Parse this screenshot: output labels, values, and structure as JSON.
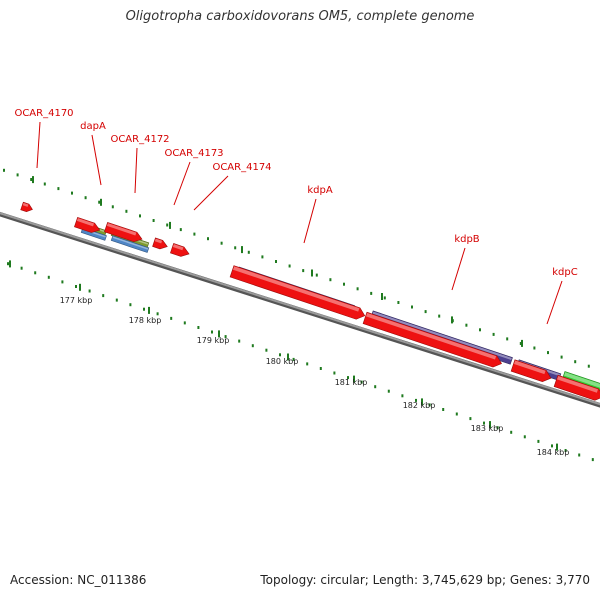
{
  "title": "Oligotropha carboxidovorans OM5, complete genome",
  "footer": {
    "accession": "Accession: NC_011386",
    "summary": "Topology: circular; Length: 3,745,629 bp; Genes: 3,770"
  },
  "colors": {
    "cds": "#ee1111",
    "gene_green": "#7d9a2e",
    "gene_blue": "#4f86c6",
    "gene_purple": "#4b3f8f",
    "gene_bright_green": "#33cc33",
    "label": "#d40000",
    "ticks": "#1f7a1f",
    "backbone": "#808080"
  },
  "gene_labels": [
    "OCAR_4170",
    "dapA",
    "OCAR_4172",
    "OCAR_4173",
    "OCAR_4174",
    "kdpA",
    "kdpB",
    "kdpC"
  ],
  "kbp_labels": [
    "177 kbp",
    "178 kbp",
    "179 kbp",
    "180 kbp",
    "181 kbp",
    "182 kbp",
    "183 kbp",
    "184 kbp"
  ]
}
